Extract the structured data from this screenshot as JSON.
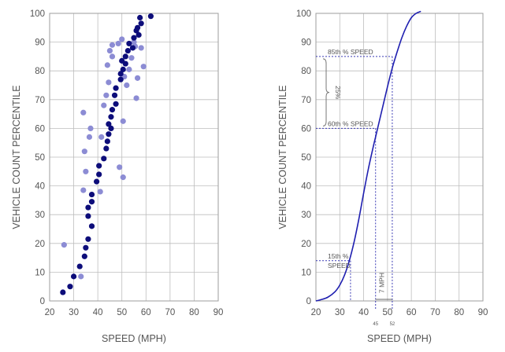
{
  "chart_data": [
    {
      "type": "scatter",
      "xlabel": "SPEED (MPH)",
      "ylabel": "VEHICLE COUNT PERCENTILE",
      "xlim": [
        20,
        90
      ],
      "ylim": [
        0,
        100
      ],
      "xticks": [
        20,
        30,
        40,
        50,
        60,
        70,
        80,
        90
      ],
      "yticks": [
        0,
        10,
        20,
        30,
        40,
        50,
        60,
        70,
        80,
        90,
        100
      ],
      "grid": true,
      "colors": {
        "dark": "#0d0d7a",
        "light": "#8c8cd4"
      },
      "series": [
        {
          "style": "dark",
          "points": [
            [
              25.5,
              3
            ],
            [
              28.5,
              5
            ],
            [
              30,
              8.5
            ],
            [
              32.5,
              12
            ],
            [
              34.5,
              15.5
            ],
            [
              35,
              18.5
            ],
            [
              36,
              21.5
            ],
            [
              37.5,
              26
            ],
            [
              36,
              29.5
            ],
            [
              36,
              32.5
            ],
            [
              37.5,
              34.5
            ],
            [
              37.5,
              37
            ],
            [
              39.5,
              41.5
            ],
            [
              40.5,
              44
            ],
            [
              40.5,
              47
            ],
            [
              42.5,
              49.5
            ],
            [
              43.5,
              53
            ],
            [
              44,
              55.5
            ],
            [
              44.5,
              58
            ],
            [
              45.5,
              60
            ],
            [
              44.5,
              61.5
            ],
            [
              45.5,
              64
            ],
            [
              46,
              66.5
            ],
            [
              47.5,
              68.5
            ],
            [
              47,
              71.5
            ],
            [
              47.5,
              74
            ],
            [
              49.5,
              77
            ],
            [
              49.5,
              79
            ],
            [
              50.5,
              80.5
            ],
            [
              51.5,
              82.5
            ],
            [
              50,
              83.5
            ],
            [
              51.5,
              85
            ],
            [
              52.5,
              87
            ],
            [
              54.5,
              88
            ],
            [
              53,
              89.5
            ],
            [
              55,
              91.5
            ],
            [
              57,
              92.5
            ],
            [
              56,
              94
            ],
            [
              56.5,
              95
            ],
            [
              58,
              96.5
            ],
            [
              57.5,
              98.5
            ],
            [
              62,
              99
            ]
          ]
        },
        {
          "style": "light",
          "points": [
            [
              26,
              19.5
            ],
            [
              33,
              8.5
            ],
            [
              34,
              38.5
            ],
            [
              35,
              45
            ],
            [
              34.5,
              52
            ],
            [
              36.5,
              57
            ],
            [
              37,
              60
            ],
            [
              34,
              65.5
            ],
            [
              41,
              38
            ],
            [
              41.5,
              57
            ],
            [
              42.5,
              68
            ],
            [
              43.5,
              71.5
            ],
            [
              44.5,
              76
            ],
            [
              44,
              82
            ],
            [
              46,
              85
            ],
            [
              45,
              87
            ],
            [
              46,
              89
            ],
            [
              49,
              46.5
            ],
            [
              50.5,
              43
            ],
            [
              50.5,
              62.5
            ],
            [
              51,
              78
            ],
            [
              52,
              75
            ],
            [
              53,
              80.5
            ],
            [
              54,
              84.5
            ],
            [
              55.5,
              88.5
            ],
            [
              55,
              90
            ],
            [
              56,
              70.5
            ],
            [
              56.5,
              77.5
            ],
            [
              58,
              88
            ],
            [
              59,
              81.5
            ],
            [
              48.5,
              89.5
            ],
            [
              50,
              91
            ]
          ]
        }
      ]
    },
    {
      "type": "line",
      "xlabel": "SPEED (MPH)",
      "ylabel": "VEHICLE COUNT PERCENTILE",
      "xlim": [
        20,
        90
      ],
      "ylim": [
        0,
        100
      ],
      "xticks": [
        20,
        30,
        40,
        50,
        60,
        70,
        80,
        90
      ],
      "yticks": [
        0,
        10,
        20,
        30,
        40,
        50,
        60,
        70,
        80,
        90,
        100
      ],
      "grid": true,
      "line_color": "#1f1fb0",
      "curve": [
        [
          20,
          0
        ],
        [
          22,
          0.4
        ],
        [
          25,
          1.3
        ],
        [
          28,
          3.2
        ],
        [
          30,
          5.5
        ],
        [
          32,
          9
        ],
        [
          34,
          14
        ],
        [
          36,
          20.5
        ],
        [
          38,
          28.5
        ],
        [
          40,
          37.5
        ],
        [
          42,
          46
        ],
        [
          44,
          53.5
        ],
        [
          45,
          57
        ],
        [
          46,
          60.5
        ],
        [
          48,
          67.5
        ],
        [
          50,
          74.5
        ],
        [
          52,
          81
        ],
        [
          54,
          86.5
        ],
        [
          56,
          91.5
        ],
        [
          58,
          95.5
        ],
        [
          60,
          98.5
        ],
        [
          62,
          100
        ],
        [
          64,
          100.7
        ]
      ],
      "annotations": {
        "p85_label": "85th % SPEED",
        "p60_label": "60th % SPEED",
        "p15_label_line1": "15th %",
        "p15_label_line2": "SPEED",
        "range_label": "25%",
        "mph_label": "7 MPH",
        "tick_45": "45",
        "tick_52": "52"
      },
      "markers": {
        "p85": {
          "x": 52,
          "y": 85
        },
        "p60": {
          "x": 45,
          "y": 60
        },
        "p15": {
          "x": 34.5,
          "y": 14
        }
      }
    }
  ]
}
